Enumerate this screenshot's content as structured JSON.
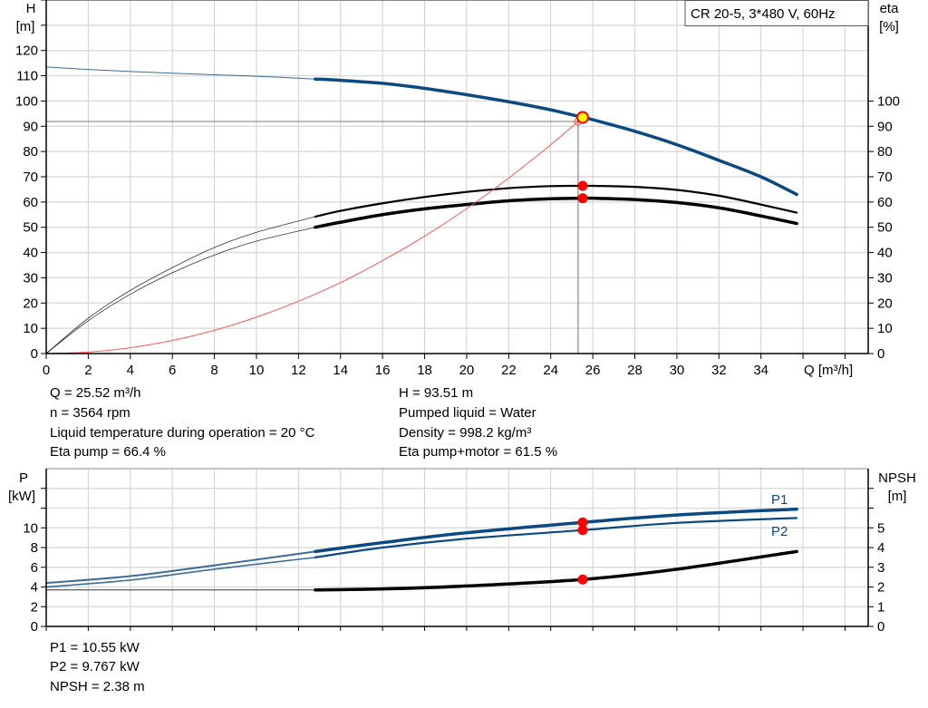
{
  "chart_data": [
    {
      "type": "line",
      "model_label": "CR 20-5, 3*480 V, 60Hz",
      "xlabel": "Q [m³/h]",
      "ylabel": "H",
      "ylabel_unit": "[m]",
      "y2label": "eta",
      "y2label_unit": "[%]",
      "xlim": [
        0,
        39.1
      ],
      "ylim": [
        0,
        140
      ],
      "y2lim": [
        0,
        140
      ],
      "x_ticks": [
        0,
        2,
        4,
        6,
        8,
        10,
        12,
        14,
        16,
        18,
        20,
        22,
        24,
        26,
        28,
        30,
        32,
        34
      ],
      "y_ticks": [
        0,
        10,
        20,
        30,
        40,
        50,
        60,
        70,
        80,
        90,
        100,
        110,
        120
      ],
      "y2_ticks": [
        0,
        10,
        20,
        30,
        40,
        50,
        60,
        70,
        80,
        90,
        100
      ],
      "grid": true,
      "colors": {
        "head": "#0b4a80",
        "efficiency": "#000000",
        "system": "#ff5555",
        "operating_point": "#ffff00",
        "marker": "#ff0000"
      },
      "operating_point": {
        "Q": 25.52,
        "H": 93.51,
        "eta_pump": 66.4,
        "eta_total": 61.5
      },
      "series": [
        {
          "key": "head",
          "axis": "left",
          "thick_from": 12.8,
          "x": [
            0,
            2,
            4,
            6,
            8,
            10,
            12.8,
            14,
            16,
            18,
            20,
            22,
            24,
            25.52,
            26,
            28,
            30,
            32,
            34,
            35.7
          ],
          "y": [
            113.5,
            112.5,
            111.7,
            111,
            110.4,
            109.8,
            108.7,
            108.2,
            107,
            105,
            102.5,
            99.7,
            96.5,
            93.5,
            92.6,
            88,
            82.7,
            76.5,
            70,
            63
          ]
        },
        {
          "key": "eta_pump",
          "axis": "right",
          "thick_from": 12.8,
          "x": [
            0,
            2,
            4,
            6,
            8,
            10,
            12.8,
            14,
            16,
            18,
            20,
            22,
            24,
            25.52,
            26,
            28,
            30,
            32,
            34,
            35.7
          ],
          "y": [
            0,
            14,
            25,
            34,
            42,
            48,
            54.2,
            56.5,
            59.5,
            62,
            64,
            65.5,
            66.3,
            66.4,
            66.4,
            66,
            64.8,
            62.5,
            59,
            55.8
          ]
        },
        {
          "key": "eta_total",
          "axis": "right",
          "thick_from": 12.8,
          "x": [
            0,
            2,
            4,
            6,
            8,
            10,
            12.8,
            14,
            16,
            18,
            20,
            22,
            24,
            25.52,
            26,
            28,
            30,
            32,
            34,
            35.7
          ],
          "y": [
            0,
            13,
            23.5,
            32,
            39,
            44.5,
            50,
            52,
            55,
            57.3,
            59,
            60.5,
            61.3,
            61.5,
            61.5,
            61,
            59.8,
            57.7,
            54.5,
            51.5
          ]
        },
        {
          "key": "system",
          "axis": "left",
          "x": [
            0,
            2,
            4,
            6,
            8,
            10,
            12,
            14,
            16,
            18,
            20,
            22,
            24,
            25.3
          ],
          "y": [
            0,
            0.6,
            2.3,
            5.2,
            9.2,
            14.4,
            20.7,
            28.1,
            36.8,
            46.5,
            57.4,
            69.5,
            82.7,
            91.9
          ]
        }
      ]
    },
    {
      "type": "line",
      "ylabel": "P",
      "ylabel_unit": "[kW]",
      "y2label": "NPSH",
      "y2label_unit": "[m]",
      "xlim": [
        0,
        39.1
      ],
      "ylim": [
        0,
        16
      ],
      "y2lim": [
        0,
        8
      ],
      "y_ticks": [
        0,
        2,
        4,
        6,
        8,
        10
      ],
      "y2_ticks": [
        0,
        1,
        2,
        3,
        4,
        5
      ],
      "grid": true,
      "series": [
        {
          "key": "P1",
          "name": "P1",
          "axis": "left",
          "thick_from": 12.8,
          "x": [
            0,
            4,
            8,
            12.8,
            16,
            20,
            25.52,
            30,
            35.7
          ],
          "y": [
            4.4,
            5.1,
            6.2,
            7.6,
            8.5,
            9.5,
            10.55,
            11.3,
            11.9
          ]
        },
        {
          "key": "P2",
          "name": "P2",
          "axis": "left",
          "thick_from": 12.8,
          "x": [
            0,
            4,
            8,
            12.8,
            16,
            20,
            25.52,
            30,
            35.7
          ],
          "y": [
            4.0,
            4.7,
            5.8,
            7.0,
            8.0,
            8.9,
            9.767,
            10.5,
            11.0
          ]
        },
        {
          "key": "NPSH",
          "axis": "right",
          "thick_from": 12.8,
          "x": [
            0,
            6,
            12.8,
            16,
            20,
            25.52,
            30,
            35.7
          ],
          "y": [
            1.85,
            1.85,
            1.85,
            1.9,
            2.05,
            2.38,
            2.9,
            3.8
          ]
        }
      ],
      "operating_point": {
        "Q": 25.52,
        "P1": 10.55,
        "P2": 9.767,
        "NPSH": 2.38
      }
    }
  ],
  "info_top": {
    "left": [
      "Q = 25.52 m³/h",
      "n = 3564 rpm",
      "Liquid temperature during operation = 20 °C",
      "Eta pump = 66.4 %"
    ],
    "right": [
      "H = 93.51 m",
      "Pumped liquid = Water",
      "Density = 998.2 kg/m³",
      "Eta pump+motor = 61.5 %"
    ]
  },
  "info_bottom": [
    "P1 = 10.55 kW",
    "P2 = 9.767 kW",
    "NPSH = 2.38 m"
  ]
}
